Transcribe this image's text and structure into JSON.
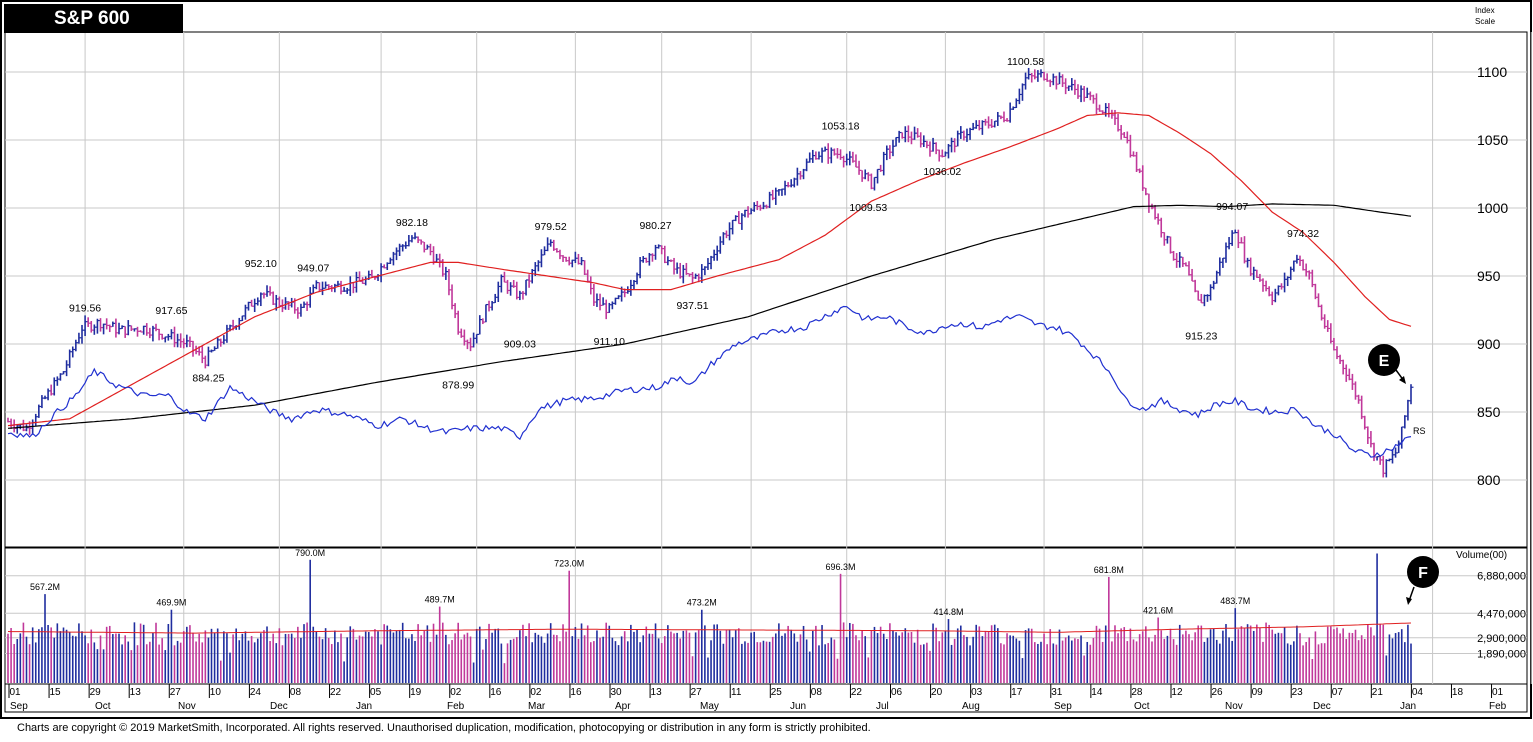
{
  "title": "S&P 600",
  "scale_label": [
    "Index",
    "Scale"
  ],
  "copyright": "Charts are copyright © 2019 MarketSmith, Incorporated. All rights reserved. Unauthorised duplication, modification, photocopying or distribution in any form is strictly prohibited.",
  "colors": {
    "up": "#1f2d9f",
    "down": "#c0389a",
    "ma_short": "#e02020",
    "ma_long": "#000000",
    "rs": "#2030d0",
    "grid": "#c8c8c8"
  },
  "chart_data": {
    "type": "candlestick",
    "price": {
      "yticks": [
        800,
        850,
        900,
        950,
        1000,
        1050,
        1100
      ],
      "ylim": [
        765,
        1125
      ],
      "annotations": [
        {
          "label": "919.56",
          "t": 25,
          "v": 919.56
        },
        {
          "label": "917.65",
          "t": 53,
          "v": 917.65
        },
        {
          "label": "884.25",
          "t": 65,
          "v": 884.25
        },
        {
          "label": "952.10",
          "t": 82,
          "v": 952.1
        },
        {
          "label": "949.07",
          "t": 99,
          "v": 949.07
        },
        {
          "label": "982.18",
          "t": 131,
          "v": 982.18
        },
        {
          "label": "878.99",
          "t": 146,
          "v": 878.99
        },
        {
          "label": "909.03",
          "t": 166,
          "v": 909.03
        },
        {
          "label": "979.52",
          "t": 176,
          "v": 979.52
        },
        {
          "label": "911.10",
          "t": 195,
          "v": 911.1
        },
        {
          "label": "980.27",
          "t": 210,
          "v": 980.27
        },
        {
          "label": "937.51",
          "t": 222,
          "v": 937.51
        },
        {
          "label": "1053.18",
          "t": 270,
          "v": 1053.18
        },
        {
          "label": "1009.53",
          "t": 279,
          "v": 1009.53
        },
        {
          "label": "1036.02",
          "t": 303,
          "v": 1036.02
        },
        {
          "label": "1100.58",
          "t": 330,
          "v": 1100.58
        },
        {
          "label": "915.23",
          "t": 387,
          "v": 915.23
        },
        {
          "label": "994.07",
          "t": 397,
          "v": 994.07
        },
        {
          "label": "974.32",
          "t": 420,
          "v": 974.32
        }
      ],
      "markers": [
        {
          "label": "E",
          "target": "price"
        },
        {
          "label": "F",
          "target": "volume"
        }
      ],
      "rs_label": "RS",
      "anchors": [
        [
          0,
          843
        ],
        [
          6,
          838
        ],
        [
          12,
          860
        ],
        [
          18,
          880
        ],
        [
          24,
          912
        ],
        [
          30,
          916
        ],
        [
          36,
          910
        ],
        [
          44,
          912
        ],
        [
          52,
          906
        ],
        [
          58,
          900
        ],
        [
          64,
          888
        ],
        [
          70,
          905
        ],
        [
          76,
          922
        ],
        [
          82,
          938
        ],
        [
          88,
          930
        ],
        [
          95,
          925
        ],
        [
          100,
          942
        ],
        [
          110,
          943
        ],
        [
          118,
          948
        ],
        [
          124,
          965
        ],
        [
          131,
          978
        ],
        [
          137,
          968
        ],
        [
          142,
          950
        ],
        [
          146,
          912
        ],
        [
          150,
          900
        ],
        [
          155,
          925
        ],
        [
          160,
          946
        ],
        [
          166,
          935
        ],
        [
          170,
          952
        ],
        [
          176,
          975
        ],
        [
          180,
          965
        ],
        [
          186,
          958
        ],
        [
          190,
          932
        ],
        [
          195,
          925
        ],
        [
          200,
          938
        ],
        [
          205,
          958
        ],
        [
          210,
          972
        ],
        [
          216,
          955
        ],
        [
          222,
          948
        ],
        [
          226,
          955
        ],
        [
          232,
          980
        ],
        [
          238,
          995
        ],
        [
          244,
          1002
        ],
        [
          250,
          1010
        ],
        [
          256,
          1025
        ],
        [
          262,
          1040
        ],
        [
          270,
          1040
        ],
        [
          276,
          1028
        ],
        [
          280,
          1018
        ],
        [
          285,
          1040
        ],
        [
          290,
          1055
        ],
        [
          296,
          1050
        ],
        [
          303,
          1040
        ],
        [
          310,
          1055
        ],
        [
          318,
          1062
        ],
        [
          324,
          1068
        ],
        [
          330,
          1095
        ],
        [
          336,
          1098
        ],
        [
          342,
          1092
        ],
        [
          348,
          1085
        ],
        [
          354,
          1075
        ],
        [
          358,
          1065
        ],
        [
          362,
          1055
        ],
        [
          366,
          1030
        ],
        [
          370,
          1005
        ],
        [
          374,
          985
        ],
        [
          378,
          965
        ],
        [
          382,
          955
        ],
        [
          386,
          930
        ],
        [
          390,
          940
        ],
        [
          394,
          965
        ],
        [
          398,
          985
        ],
        [
          402,
          958
        ],
        [
          406,
          948
        ],
        [
          410,
          935
        ],
        [
          414,
          945
        ],
        [
          418,
          965
        ],
        [
          422,
          950
        ],
        [
          426,
          920
        ],
        [
          430,
          895
        ],
        [
          434,
          880
        ],
        [
          438,
          858
        ],
        [
          442,
          825
        ],
        [
          446,
          808
        ],
        [
          450,
          820
        ],
        [
          452,
          835
        ],
        [
          455,
          870
        ]
      ],
      "ma50_anchors": [
        [
          0,
          840
        ],
        [
          20,
          845
        ],
        [
          40,
          870
        ],
        [
          60,
          895
        ],
        [
          80,
          920
        ],
        [
          100,
          938
        ],
        [
          120,
          950
        ],
        [
          137,
          960
        ],
        [
          146,
          960
        ],
        [
          160,
          955
        ],
        [
          175,
          950
        ],
        [
          190,
          945
        ],
        [
          200,
          940
        ],
        [
          215,
          940
        ],
        [
          230,
          950
        ],
        [
          250,
          962
        ],
        [
          265,
          980
        ],
        [
          280,
          1005
        ],
        [
          295,
          1020
        ],
        [
          310,
          1033
        ],
        [
          325,
          1045
        ],
        [
          340,
          1058
        ],
        [
          350,
          1068
        ],
        [
          360,
          1070
        ],
        [
          370,
          1068
        ],
        [
          380,
          1055
        ],
        [
          390,
          1040
        ],
        [
          400,
          1020
        ],
        [
          410,
          997
        ],
        [
          420,
          982
        ],
        [
          430,
          960
        ],
        [
          440,
          935
        ],
        [
          448,
          918
        ],
        [
          455,
          913
        ]
      ],
      "ma200_anchors": [
        [
          0,
          838
        ],
        [
          40,
          845
        ],
        [
          80,
          855
        ],
        [
          120,
          872
        ],
        [
          160,
          887
        ],
        [
          200,
          900
        ],
        [
          240,
          920
        ],
        [
          280,
          950
        ],
        [
          320,
          977
        ],
        [
          350,
          993
        ],
        [
          365,
          1001
        ],
        [
          380,
          1002
        ],
        [
          395,
          1001
        ],
        [
          410,
          1003
        ],
        [
          430,
          1002
        ],
        [
          445,
          997
        ],
        [
          455,
          994
        ]
      ],
      "rs_anchors": [
        [
          0,
          835
        ],
        [
          8,
          832
        ],
        [
          15,
          848
        ],
        [
          22,
          862
        ],
        [
          28,
          880
        ],
        [
          35,
          870
        ],
        [
          44,
          862
        ],
        [
          52,
          862
        ],
        [
          58,
          850
        ],
        [
          64,
          845
        ],
        [
          72,
          868
        ],
        [
          80,
          858
        ],
        [
          86,
          850
        ],
        [
          92,
          845
        ],
        [
          100,
          852
        ],
        [
          110,
          848
        ],
        [
          120,
          840
        ],
        [
          128,
          845
        ],
        [
          136,
          838
        ],
        [
          142,
          835
        ],
        [
          150,
          838
        ],
        [
          160,
          838
        ],
        [
          166,
          832
        ],
        [
          172,
          852
        ],
        [
          180,
          858
        ],
        [
          190,
          860
        ],
        [
          200,
          866
        ],
        [
          210,
          868
        ],
        [
          218,
          876
        ],
        [
          222,
          870
        ],
        [
          228,
          885
        ],
        [
          236,
          900
        ],
        [
          244,
          905
        ],
        [
          250,
          910
        ],
        [
          258,
          912
        ],
        [
          266,
          922
        ],
        [
          272,
          928
        ],
        [
          278,
          918
        ],
        [
          285,
          920
        ],
        [
          292,
          912
        ],
        [
          298,
          908
        ],
        [
          304,
          914
        ],
        [
          310,
          915
        ],
        [
          316,
          912
        ],
        [
          322,
          918
        ],
        [
          328,
          920
        ],
        [
          334,
          914
        ],
        [
          340,
          912
        ],
        [
          346,
          905
        ],
        [
          352,
          892
        ],
        [
          358,
          878
        ],
        [
          362,
          860
        ],
        [
          368,
          852
        ],
        [
          374,
          858
        ],
        [
          380,
          852
        ],
        [
          386,
          848
        ],
        [
          392,
          856
        ],
        [
          398,
          858
        ],
        [
          404,
          852
        ],
        [
          412,
          850
        ],
        [
          418,
          852
        ],
        [
          424,
          840
        ],
        [
          430,
          834
        ],
        [
          436,
          822
        ],
        [
          442,
          818
        ],
        [
          448,
          822
        ],
        [
          455,
          832
        ]
      ]
    },
    "volume": {
      "label": "Volume(00)",
      "yticks": [
        "6,880,000",
        "4,470,000",
        "2,900,000",
        "1,890,000"
      ],
      "annotations": [
        {
          "label": "567.2M",
          "t": 12
        },
        {
          "label": "469.9M",
          "t": 53
        },
        {
          "label": "790.0M",
          "t": 98
        },
        {
          "label": "489.7M",
          "t": 140
        },
        {
          "label": "723.0M",
          "t": 182
        },
        {
          "label": "696.3M",
          "t": 270
        },
        {
          "label": "473.2M",
          "t": 225
        },
        {
          "label": "414.8M",
          "t": 305
        },
        {
          "label": "681.8M",
          "t": 357
        },
        {
          "label": "421.6M",
          "t": 373
        },
        {
          "label": "483.7M",
          "t": 398
        }
      ],
      "spikes": [
        [
          12,
          5.7
        ],
        [
          53,
          4.7
        ],
        [
          98,
          7.9
        ],
        [
          140,
          4.9
        ],
        [
          182,
          7.2
        ],
        [
          225,
          4.7
        ],
        [
          270,
          7.0
        ],
        [
          305,
          4.1
        ],
        [
          357,
          6.8
        ],
        [
          373,
          4.2
        ],
        [
          398,
          4.8
        ],
        [
          444,
          8.3
        ]
      ]
    },
    "x_ticks": [
      "01",
      "15",
      "29",
      "13",
      "27",
      "10",
      "24",
      "08",
      "22",
      "05",
      "19",
      "02",
      "16",
      "02",
      "16",
      "30",
      "13",
      "27",
      "11",
      "25",
      "08",
      "22",
      "06",
      "20",
      "03",
      "17",
      "31",
      "14",
      "28",
      "12",
      "26",
      "09",
      "23",
      "07",
      "21",
      "04",
      "18",
      "01"
    ],
    "month_labels": [
      "Sep",
      "Oct",
      "Nov",
      "Dec",
      "Jan",
      "Feb",
      "Mar",
      "Apr",
      "May",
      "Jun",
      "Jul",
      "Aug",
      "Sep",
      "Oct",
      "Nov",
      "Dec",
      "Jan",
      "Feb"
    ]
  }
}
